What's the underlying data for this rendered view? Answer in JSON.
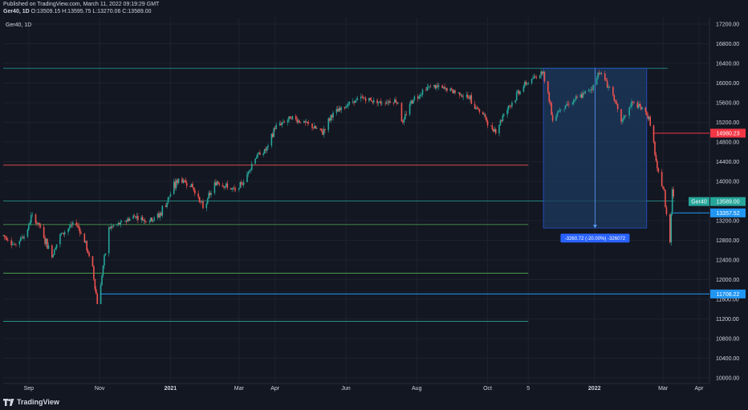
{
  "header": {
    "published": "Published on TradingView.com, March 11, 2022 09:19:29 GMT",
    "symbol_line": "Ger40, 1D",
    "ohlc": "O:13509.15 H:13595.75 L:13270.06 C:13589.00"
  },
  "symbol_label": "Ger40, 1D",
  "footer": {
    "brand": "TradingView"
  },
  "colors": {
    "background": "#131722",
    "up": "#26a69a",
    "down": "#ef5350",
    "grid": "#1e222d",
    "measure_fill": "#1e3a5f",
    "measure_line": "#2962ff",
    "price_label_current": "#26a69a",
    "price_label_red": "#f23645",
    "price_label_blue": "#2196f3"
  },
  "chart_data": {
    "type": "candlestick",
    "title": "",
    "xlabel": "",
    "ylabel": "",
    "x_range": [
      "2020-08-10",
      "2022-04-10"
    ],
    "ylim": [
      9800,
      17300
    ],
    "y_ticks": [
      17200,
      16800,
      16400,
      16000,
      15600,
      15200,
      14800,
      14400,
      14000,
      13600,
      13200,
      12800,
      12400,
      12000,
      11600,
      11200,
      10800,
      10400,
      10000
    ],
    "y_tick_labels": [
      "17200.00",
      "16800.00",
      "16400.00",
      "16000.00",
      "15600.00",
      "15200.00",
      "14800.00",
      "14400.00",
      "14000.00",
      "13600.00",
      "13200.00",
      "12800.00",
      "12400.00",
      "12000.00",
      "11600.00",
      "11200.00",
      "10800.00",
      "10400.00",
      "10000.00"
    ],
    "x_ticks": [
      {
        "date": "2020-09-01",
        "label": "Sep",
        "bold": false
      },
      {
        "date": "2020-11-01",
        "label": "Nov",
        "bold": false
      },
      {
        "date": "2021-01-01",
        "label": "2021",
        "bold": true
      },
      {
        "date": "2021-03-01",
        "label": "Mar",
        "bold": false
      },
      {
        "date": "2021-04-01",
        "label": "Apr",
        "bold": false
      },
      {
        "date": "2021-06-01",
        "label": "Jun",
        "bold": false
      },
      {
        "date": "2021-08-01",
        "label": "Aug",
        "bold": false
      },
      {
        "date": "2021-10-01",
        "label": "Oct",
        "bold": false
      },
      {
        "date": "2021-11-05",
        "label": "5",
        "bold": false
      },
      {
        "date": "2022-01-01",
        "label": "2022",
        "bold": true
      },
      {
        "date": "2022-03-01",
        "label": "Mar",
        "bold": false
      },
      {
        "date": "2022-04-01",
        "label": "Apr",
        "bold": false
      }
    ],
    "price_path": [
      [
        "2020-08-10",
        12900
      ],
      [
        "2020-08-20",
        12700
      ],
      [
        "2020-08-31",
        13000
      ],
      [
        "2020-09-03",
        13300
      ],
      [
        "2020-09-10",
        13100
      ],
      [
        "2020-09-21",
        12500
      ],
      [
        "2020-09-28",
        12900
      ],
      [
        "2020-10-08",
        13100
      ],
      [
        "2020-10-12",
        13150
      ],
      [
        "2020-10-19",
        12800
      ],
      [
        "2020-10-26",
        12200
      ],
      [
        "2020-10-30",
        11550
      ],
      [
        "2020-11-06",
        12500
      ],
      [
        "2020-11-09",
        13050
      ],
      [
        "2020-11-20",
        13150
      ],
      [
        "2020-12-01",
        13300
      ],
      [
        "2020-12-11",
        13200
      ],
      [
        "2020-12-21",
        13250
      ],
      [
        "2021-01-08",
        14050
      ],
      [
        "2021-01-20",
        13900
      ],
      [
        "2021-01-29",
        13450
      ],
      [
        "2021-02-10",
        14000
      ],
      [
        "2021-02-26",
        13800
      ],
      [
        "2021-03-05",
        14000
      ],
      [
        "2021-03-15",
        14500
      ],
      [
        "2021-03-25",
        14650
      ],
      [
        "2021-04-01",
        15100
      ],
      [
        "2021-04-15",
        15300
      ],
      [
        "2021-04-30",
        15150
      ],
      [
        "2021-05-12",
        15000
      ],
      [
        "2021-05-20",
        15350
      ],
      [
        "2021-06-01",
        15550
      ],
      [
        "2021-06-15",
        15700
      ],
      [
        "2021-06-30",
        15600
      ],
      [
        "2021-07-15",
        15650
      ],
      [
        "2021-07-20",
        15200
      ],
      [
        "2021-07-28",
        15650
      ],
      [
        "2021-08-13",
        15950
      ],
      [
        "2021-08-31",
        15850
      ],
      [
        "2021-09-15",
        15700
      ],
      [
        "2021-09-30",
        15250
      ],
      [
        "2021-10-06",
        15000
      ],
      [
        "2021-10-20",
        15550
      ],
      [
        "2021-11-01",
        15950
      ],
      [
        "2021-11-10",
        16100
      ],
      [
        "2021-11-18",
        16250
      ],
      [
        "2021-11-26",
        15250
      ],
      [
        "2021-12-01",
        15450
      ],
      [
        "2021-12-15",
        15650
      ],
      [
        "2021-12-30",
        15900
      ],
      [
        "2022-01-05",
        16250
      ],
      [
        "2022-01-14",
        15900
      ],
      [
        "2022-01-24",
        15200
      ],
      [
        "2022-02-02",
        15600
      ],
      [
        "2022-02-10",
        15500
      ],
      [
        "2022-02-16",
        15350
      ],
      [
        "2022-02-21",
        14750
      ],
      [
        "2022-02-24",
        14200
      ],
      [
        "2022-03-01",
        13900
      ],
      [
        "2022-03-07",
        12800
      ],
      [
        "2022-03-09",
        13850
      ],
      [
        "2022-03-11",
        13589
      ]
    ],
    "horizontal_lines": [
      {
        "price": 16300,
        "color": "#26a69a",
        "x_end": "2022-03-05"
      },
      {
        "price": 14330,
        "color": "#ef5350",
        "x_end": "2021-11-05"
      },
      {
        "price": 13600,
        "color": "#26a69a",
        "x_end": "2022-03-11"
      },
      {
        "price": 13120,
        "color": "#4caf50",
        "x_end": "2021-11-05"
      },
      {
        "price": 12130,
        "color": "#4caf50",
        "x_end": "2021-11-05"
      },
      {
        "price": 11150,
        "color": "#26a69a",
        "x_end": "2021-11-05"
      }
    ],
    "ray_lines": [
      {
        "price": 14980.23,
        "color": "#f23645",
        "x_start": "2022-02-20"
      },
      {
        "price": 11708.22,
        "color": "#2196f3",
        "x_start": "2020-11-02"
      },
      {
        "price": 13357.52,
        "color": "#2196f3",
        "x_start": "2022-03-10"
      }
    ],
    "price_labels": [
      {
        "price": 14980.23,
        "text": "14980.23",
        "color": "#f23645"
      },
      {
        "price": 13589.0,
        "text": "13589.00",
        "color": "#26a69a",
        "prefix": "Ger40"
      },
      {
        "price": 13357.52,
        "text": "13357.52",
        "color": "#2196f3"
      },
      {
        "price": 11708.22,
        "text": "11708.22",
        "color": "#2196f3"
      }
    ],
    "measure": {
      "x_start": "2021-11-18",
      "x_end": "2022-02-15",
      "price_top": 16300,
      "price_bottom": 13050,
      "label": "-3260.72 (-20.00%) -326072"
    }
  }
}
